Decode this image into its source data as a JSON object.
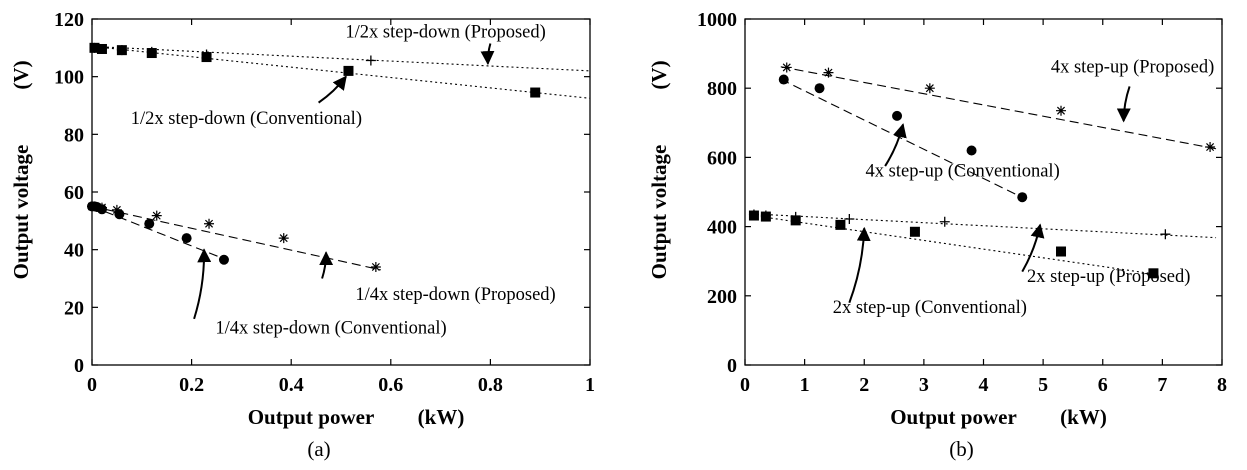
{
  "chart_data": [
    {
      "type": "line",
      "panel_label": "(a)",
      "xlabel": "Output power",
      "xunit": "(kW)",
      "ylabel": "Output voltage",
      "yunit": "(V)",
      "xlim": [
        0,
        1
      ],
      "ylim": [
        0,
        120
      ],
      "xticks": [
        0,
        0.2,
        0.4,
        0.6,
        0.8,
        1
      ],
      "xtick_labels": [
        "0",
        "0.2",
        "0.4",
        "0.6",
        "0.8",
        "1"
      ],
      "yticks": [
        0,
        20,
        40,
        60,
        80,
        100,
        120
      ],
      "ytick_labels": [
        "0",
        "20",
        "40",
        "60",
        "80",
        "100",
        "120"
      ],
      "grid": false,
      "series": [
        {
          "name": "1/2x step-down (Proposed)",
          "marker": "plus",
          "line": "dotted",
          "x": [
            0.005,
            0.02,
            0.06,
            0.12,
            0.23,
            0.56
          ],
          "y": [
            110,
            109.6,
            109.2,
            108.6,
            107.7,
            105.6
          ],
          "fit": [
            [
              0,
              110.5
            ],
            [
              1,
              102
            ]
          ]
        },
        {
          "name": "1/2x step-down (Conventional)",
          "marker": "square",
          "line": "dotted",
          "x": [
            0.005,
            0.02,
            0.06,
            0.12,
            0.23,
            0.515,
            0.89
          ],
          "y": [
            110,
            109.6,
            109.2,
            108.2,
            106.8,
            102,
            94.5
          ],
          "fit": [
            [
              0,
              110.5
            ],
            [
              1,
              92.5
            ]
          ]
        },
        {
          "name": "1/4x step-down (Proposed)",
          "marker": "asterisk",
          "line": "dashed",
          "x": [
            0,
            0.01,
            0.02,
            0.05,
            0.13,
            0.235,
            0.385,
            0.57
          ],
          "y": [
            55,
            54.8,
            54.6,
            53.8,
            51.8,
            49,
            44,
            34
          ],
          "fit": [
            [
              0,
              55
            ],
            [
              0.58,
              33
            ]
          ]
        },
        {
          "name": "1/4x step-down (Conventional)",
          "marker": "circle",
          "line": "dashed",
          "x": [
            0,
            0.005,
            0.01,
            0.02,
            0.055,
            0.115,
            0.19,
            0.265
          ],
          "y": [
            55,
            55,
            54.8,
            54,
            52.3,
            49,
            44,
            36.5
          ],
          "fit": [
            [
              0,
              55
            ],
            [
              0.27,
              36.5
            ]
          ]
        }
      ],
      "annotations": [
        {
          "text": "1/2x step-down (Proposed)",
          "x": 0.71,
          "y": 113.5,
          "arrow_from": [
            0.8,
            111.5
          ],
          "arrow_to": [
            0.795,
            104.5
          ]
        },
        {
          "text": "1/2x step-down (Conventional)",
          "x": 0.31,
          "y": 83.5,
          "arrow_from": [
            0.455,
            91
          ],
          "arrow_to": [
            0.51,
            100
          ]
        },
        {
          "text": "1/4x step-down (Proposed)",
          "x": 0.73,
          "y": 22.5,
          "arrow_from": [
            0.462,
            30
          ],
          "arrow_to": [
            0.47,
            39
          ]
        },
        {
          "text": "1/4x step-down (Conventional)",
          "x": 0.48,
          "y": 11,
          "arrow_from": [
            0.205,
            16
          ],
          "arrow_to": [
            0.225,
            40
          ]
        }
      ]
    },
    {
      "type": "line",
      "panel_label": "(b)",
      "xlabel": "Output power",
      "xunit": "(kW)",
      "ylabel": "Output voltage",
      "yunit": "(V)",
      "xlim": [
        0,
        8
      ],
      "ylim": [
        0,
        1000
      ],
      "xticks": [
        0,
        1,
        2,
        3,
        4,
        5,
        6,
        7,
        8
      ],
      "xtick_labels": [
        "0",
        "1",
        "2",
        "3",
        "4",
        "5",
        "6",
        "7",
        "8"
      ],
      "yticks": [
        0,
        200,
        400,
        600,
        800,
        1000
      ],
      "ytick_labels": [
        "0",
        "200",
        "400",
        "600",
        "800",
        "1000"
      ],
      "grid": false,
      "series": [
        {
          "name": "4x step-up (Proposed)",
          "marker": "asterisk",
          "line": "dashed",
          "x": [
            0.7,
            1.4,
            3.1,
            5.3,
            7.8
          ],
          "y": [
            860,
            845,
            800,
            735,
            630
          ],
          "fit": [
            [
              0.6,
              862
            ],
            [
              7.9,
              625
            ]
          ]
        },
        {
          "name": "4x step-up (Conventional)",
          "marker": "circle",
          "line": "dashed",
          "x": [
            0.65,
            1.25,
            2.55,
            3.8,
            4.65
          ],
          "y": [
            825,
            800,
            720,
            620,
            485
          ],
          "fit": [
            [
              0.6,
              826
            ],
            [
              4.7,
              480
            ]
          ]
        },
        {
          "name": "2x step-up (Proposed)",
          "marker": "plus",
          "line": "dotted",
          "x": [
            0.15,
            0.35,
            0.85,
            1.75,
            3.35,
            7.05
          ],
          "y": [
            435,
            432,
            428,
            422,
            414,
            378
          ],
          "fit": [
            [
              0.1,
              437
            ],
            [
              7.9,
              368
            ]
          ]
        },
        {
          "name": "2x step-up (Conventional)",
          "marker": "square",
          "line": "dotted",
          "x": [
            0.15,
            0.35,
            0.85,
            1.6,
            2.85,
            5.3,
            6.85
          ],
          "y": [
            432,
            429,
            418,
            405,
            385,
            328,
            265
          ],
          "fit": [
            [
              0.1,
              433
            ],
            [
              6.9,
              262
            ]
          ]
        }
      ],
      "annotations": [
        {
          "text": "4x step-up (Proposed)",
          "x": 6.5,
          "y": 845,
          "arrow_from": [
            6.45,
            805
          ],
          "arrow_to": [
            6.35,
            705
          ]
        },
        {
          "text": "4x step-up (Conventional)",
          "x": 3.65,
          "y": 545,
          "arrow_from": [
            2.35,
            575
          ],
          "arrow_to": [
            2.65,
            695
          ]
        },
        {
          "text": "2x step-up (Proposed)",
          "x": 6.1,
          "y": 240,
          "arrow_from": [
            4.65,
            270
          ],
          "arrow_to": [
            4.95,
            405
          ]
        },
        {
          "text": "2x step-up (Conventional)",
          "x": 3.1,
          "y": 150,
          "arrow_from": [
            1.75,
            180
          ],
          "arrow_to": [
            2.0,
            395
          ]
        }
      ]
    }
  ]
}
